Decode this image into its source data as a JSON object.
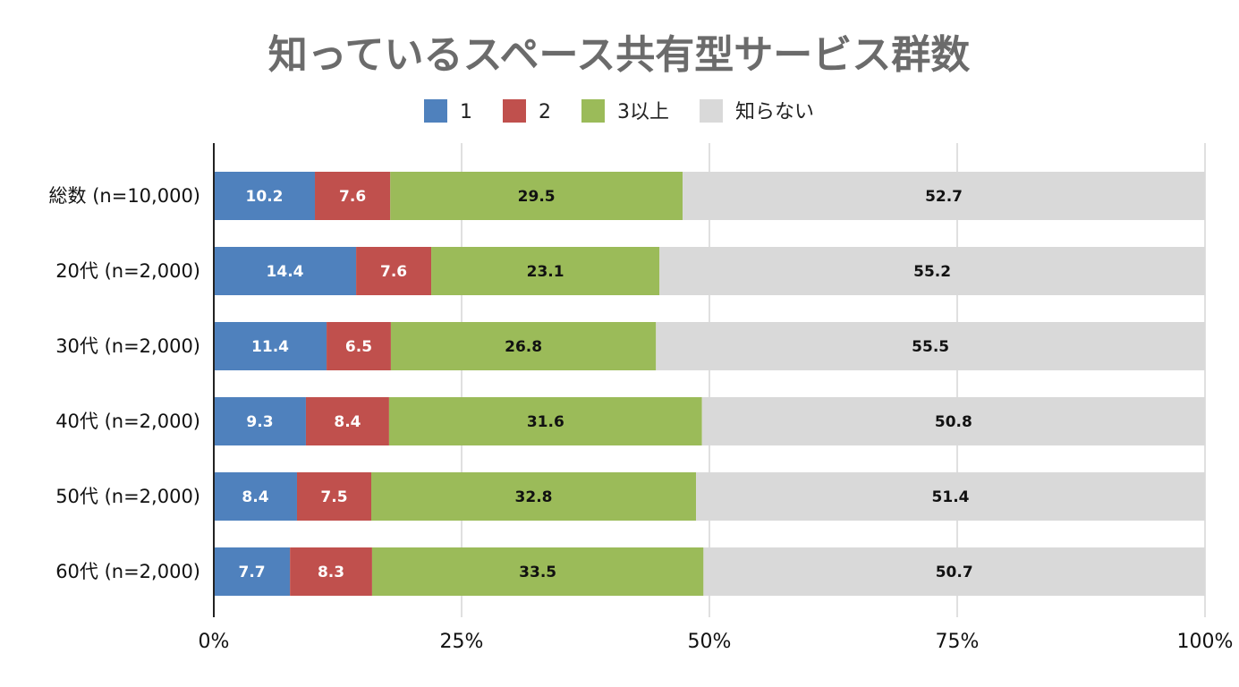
{
  "chart_data": {
    "type": "bar",
    "orientation": "horizontal",
    "stacked": "percent",
    "title": "知っているスペース共有型サービス群数",
    "categories": [
      "総数 (n=10,000)",
      "20代 (n=2,000)",
      "30代 (n=2,000)",
      "40代 (n=2,000)",
      "50代 (n=2,000)",
      "60代 (n=2,000)"
    ],
    "series": [
      {
        "name": "1",
        "color": "#4f81bd",
        "label_color": "#ffffff",
        "values": [
          10.2,
          14.4,
          11.4,
          9.3,
          8.4,
          7.7
        ]
      },
      {
        "name": "2",
        "color": "#c0504d",
        "label_color": "#ffffff",
        "values": [
          7.6,
          7.6,
          6.5,
          8.4,
          7.5,
          8.3
        ]
      },
      {
        "name": "3以上",
        "color": "#9bbb59",
        "label_color": "#111111",
        "values": [
          29.5,
          23.1,
          26.8,
          31.6,
          32.8,
          33.5
        ]
      },
      {
        "name": "知らない",
        "color": "#d9d9d9",
        "label_color": "#111111",
        "values": [
          52.7,
          55.2,
          55.5,
          50.8,
          51.4,
          50.7
        ]
      }
    ],
    "xlim": [
      0,
      100
    ],
    "xticks": [
      "0%",
      "25%",
      "50%",
      "75%",
      "100%"
    ],
    "grid": true,
    "legend_position": "top"
  }
}
